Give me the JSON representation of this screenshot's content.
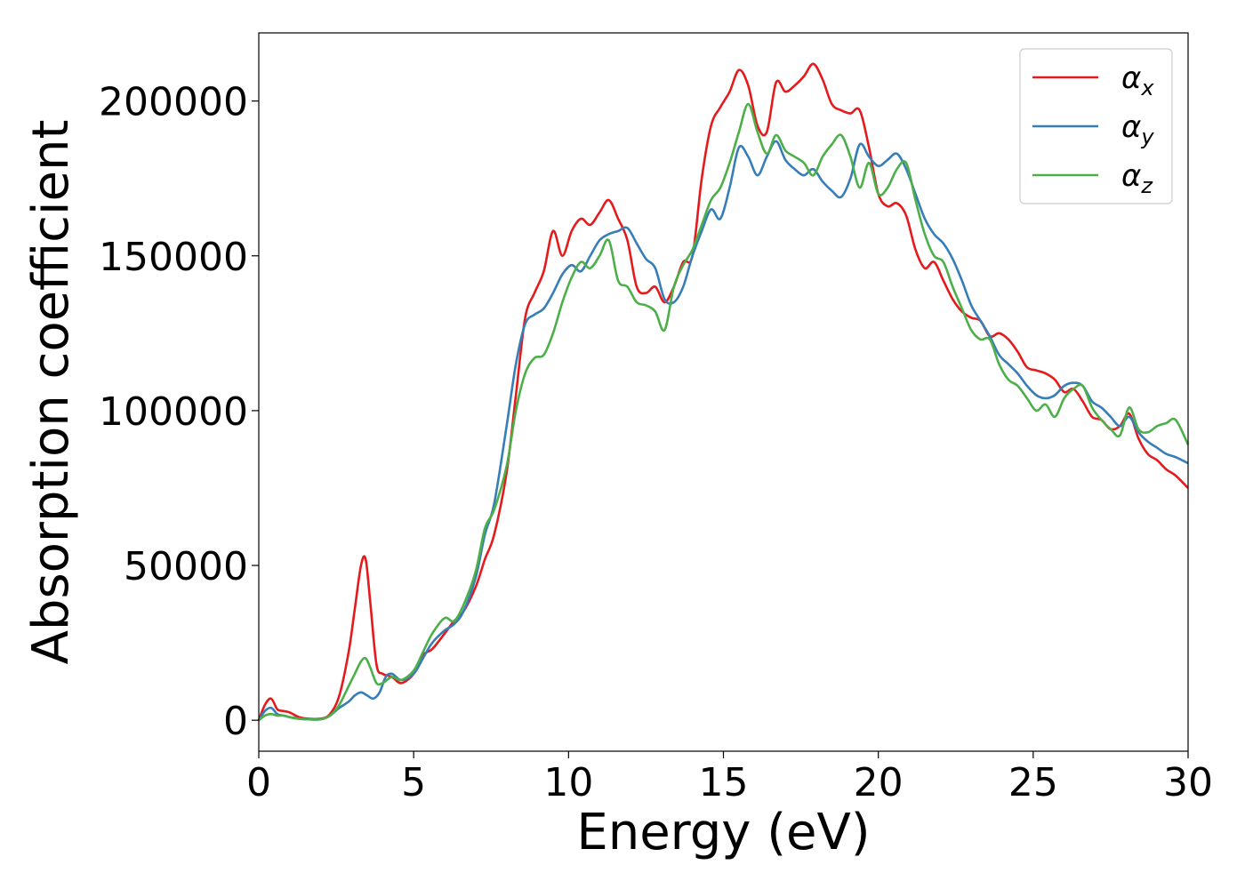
{
  "chart_data": {
    "type": "line",
    "title": "",
    "xlabel": "Energy (eV)",
    "ylabel": "Absorption coefficient",
    "xlim": [
      0,
      30
    ],
    "ylim": [
      -10000,
      222000
    ],
    "xticks": [
      "0",
      "5",
      "10",
      "15",
      "20",
      "25",
      "30"
    ],
    "yticks": [
      "0",
      "50000",
      "100000",
      "150000",
      "200000"
    ],
    "grid": false,
    "legend_position": "top-right",
    "series": [
      {
        "name": "α",
        "subscript": "x",
        "color": "#e41a1c",
        "x": [
          0,
          0.2,
          0.4,
          0.6,
          0.8,
          1.0,
          1.3,
          1.6,
          2.0,
          2.3,
          2.6,
          2.9,
          3.1,
          3.3,
          3.45,
          3.6,
          3.8,
          4.0,
          4.3,
          4.6,
          5.0,
          5.3,
          5.6,
          6.0,
          6.3,
          6.6,
          7.0,
          7.3,
          7.6,
          8.0,
          8.3,
          8.6,
          8.9,
          9.2,
          9.5,
          9.8,
          10.1,
          10.4,
          10.7,
          11.0,
          11.3,
          11.6,
          11.9,
          12.2,
          12.5,
          12.8,
          13.1,
          13.4,
          13.7,
          14.0,
          14.3,
          14.6,
          14.9,
          15.2,
          15.5,
          15.8,
          16.1,
          16.4,
          16.7,
          17.0,
          17.3,
          17.6,
          17.9,
          18.2,
          18.5,
          18.8,
          19.1,
          19.4,
          19.7,
          20.0,
          20.3,
          20.6,
          20.9,
          21.2,
          21.5,
          21.8,
          22.1,
          22.4,
          22.7,
          23.0,
          23.3,
          23.6,
          23.9,
          24.2,
          24.5,
          24.8,
          25.1,
          25.4,
          25.7,
          26.0,
          26.3,
          26.6,
          26.9,
          27.2,
          27.5,
          27.8,
          28.1,
          28.4,
          28.7,
          29.0,
          29.3,
          29.6,
          30.0
        ],
        "y": [
          0,
          5000,
          7000,
          3500,
          3000,
          2500,
          1000,
          500,
          500,
          2000,
          8000,
          22000,
          36000,
          50000,
          52000,
          38000,
          18000,
          15000,
          14000,
          12000,
          15000,
          21000,
          23000,
          28000,
          32000,
          35000,
          43000,
          52000,
          60000,
          80000,
          105000,
          130000,
          138000,
          145000,
          158000,
          150000,
          158000,
          162000,
          160000,
          164000,
          168000,
          162000,
          155000,
          140000,
          138000,
          140000,
          135000,
          140000,
          148000,
          150000,
          175000,
          192000,
          198000,
          203000,
          210000,
          205000,
          192000,
          190000,
          206000,
          203000,
          205000,
          208000,
          212000,
          207000,
          199000,
          197000,
          196000,
          197000,
          185000,
          170000,
          166000,
          167000,
          163000,
          152000,
          146000,
          148000,
          142000,
          136000,
          132000,
          130000,
          129000,
          124000,
          125000,
          123000,
          119000,
          114000,
          113000,
          112000,
          110000,
          106000,
          107000,
          103000,
          98000,
          97000,
          94000,
          95000,
          99000,
          91000,
          86000,
          84000,
          81000,
          79000,
          75000
        ]
      },
      {
        "name": "α",
        "subscript": "y",
        "color": "#377eb8",
        "x": [
          0,
          0.2,
          0.4,
          0.6,
          0.8,
          1.0,
          1.3,
          1.6,
          2.0,
          2.3,
          2.6,
          2.9,
          3.1,
          3.3,
          3.5,
          3.7,
          3.9,
          4.1,
          4.3,
          4.6,
          5.0,
          5.3,
          5.6,
          6.0,
          6.3,
          6.6,
          7.0,
          7.3,
          7.6,
          8.0,
          8.3,
          8.6,
          8.9,
          9.2,
          9.5,
          9.8,
          10.1,
          10.4,
          10.7,
          11.0,
          11.3,
          11.6,
          11.9,
          12.2,
          12.5,
          12.8,
          13.1,
          13.4,
          13.7,
          14.0,
          14.3,
          14.6,
          14.9,
          15.2,
          15.5,
          15.8,
          16.1,
          16.4,
          16.7,
          17.0,
          17.3,
          17.6,
          17.9,
          18.2,
          18.5,
          18.8,
          19.1,
          19.4,
          19.7,
          20.0,
          20.3,
          20.6,
          20.9,
          21.2,
          21.5,
          21.8,
          22.1,
          22.4,
          22.7,
          23.0,
          23.3,
          23.6,
          23.9,
          24.2,
          24.5,
          24.8,
          25.1,
          25.4,
          25.7,
          26.0,
          26.3,
          26.6,
          26.9,
          27.2,
          27.5,
          27.8,
          28.1,
          28.4,
          28.7,
          29.0,
          29.3,
          29.6,
          30.0
        ],
        "y": [
          0,
          3000,
          4000,
          2000,
          1500,
          1000,
          500,
          300,
          300,
          1500,
          4000,
          6000,
          8000,
          9000,
          8000,
          7000,
          9000,
          14000,
          15000,
          13000,
          15000,
          20000,
          25000,
          29000,
          31000,
          35000,
          46000,
          60000,
          70000,
          95000,
          115000,
          128000,
          131000,
          133000,
          138000,
          144000,
          147000,
          145000,
          150000,
          155000,
          157000,
          158000,
          159000,
          154000,
          149000,
          146000,
          136000,
          135000,
          140000,
          150000,
          158000,
          165000,
          162000,
          172000,
          185000,
          182000,
          176000,
          182000,
          187000,
          181000,
          178000,
          176000,
          178000,
          174000,
          171000,
          169000,
          175000,
          186000,
          182000,
          179000,
          181000,
          183000,
          178000,
          170000,
          162000,
          157000,
          154000,
          149000,
          142000,
          134000,
          129000,
          124000,
          118000,
          115000,
          112000,
          108000,
          105000,
          104000,
          105000,
          108000,
          109000,
          108000,
          103000,
          101000,
          98000,
          95000,
          98000,
          93000,
          90000,
          88000,
          86000,
          85000,
          83000
        ]
      },
      {
        "name": "α",
        "subscript": "z",
        "color": "#4daf4a",
        "x": [
          0,
          0.2,
          0.4,
          0.6,
          0.8,
          1.0,
          1.3,
          1.6,
          2.0,
          2.3,
          2.6,
          2.9,
          3.1,
          3.3,
          3.45,
          3.6,
          3.8,
          4.0,
          4.3,
          4.6,
          5.0,
          5.3,
          5.6,
          6.0,
          6.3,
          6.6,
          7.0,
          7.3,
          7.6,
          8.0,
          8.3,
          8.6,
          8.9,
          9.2,
          9.5,
          9.8,
          10.1,
          10.4,
          10.7,
          11.0,
          11.3,
          11.6,
          11.9,
          12.2,
          12.5,
          12.8,
          13.1,
          13.4,
          13.7,
          14.0,
          14.3,
          14.6,
          14.9,
          15.2,
          15.5,
          15.8,
          16.1,
          16.4,
          16.7,
          17.0,
          17.3,
          17.6,
          17.9,
          18.2,
          18.5,
          18.8,
          19.1,
          19.4,
          19.7,
          20.0,
          20.3,
          20.6,
          20.9,
          21.2,
          21.5,
          21.8,
          22.1,
          22.4,
          22.7,
          23.0,
          23.3,
          23.6,
          23.9,
          24.2,
          24.5,
          24.8,
          25.1,
          25.4,
          25.7,
          26.0,
          26.3,
          26.6,
          26.9,
          27.2,
          27.5,
          27.8,
          28.1,
          28.4,
          28.7,
          29.0,
          29.3,
          29.6,
          30.0
        ],
        "y": [
          0,
          1500,
          2000,
          1500,
          1500,
          1000,
          500,
          300,
          300,
          1500,
          5000,
          11000,
          15000,
          19000,
          20000,
          17000,
          12000,
          12000,
          14000,
          13000,
          16000,
          22000,
          28000,
          33000,
          32000,
          37000,
          48000,
          62000,
          68000,
          82000,
          100000,
          112000,
          117000,
          118000,
          125000,
          135000,
          143000,
          148000,
          146000,
          150000,
          155000,
          142000,
          140000,
          135000,
          134000,
          132000,
          126000,
          140000,
          147000,
          152000,
          160000,
          168000,
          172000,
          180000,
          190000,
          199000,
          190000,
          183000,
          189000,
          184000,
          182000,
          180000,
          176000,
          182000,
          186000,
          189000,
          182000,
          172000,
          180000,
          170000,
          172000,
          178000,
          180000,
          168000,
          157000,
          150000,
          148000,
          140000,
          133000,
          126000,
          123000,
          123000,
          115000,
          110000,
          108000,
          104000,
          100000,
          102000,
          98000,
          104000,
          107000,
          108000,
          101000,
          97000,
          94000,
          92000,
          101000,
          94000,
          93000,
          95000,
          96000,
          97000,
          89000
        ]
      }
    ]
  }
}
